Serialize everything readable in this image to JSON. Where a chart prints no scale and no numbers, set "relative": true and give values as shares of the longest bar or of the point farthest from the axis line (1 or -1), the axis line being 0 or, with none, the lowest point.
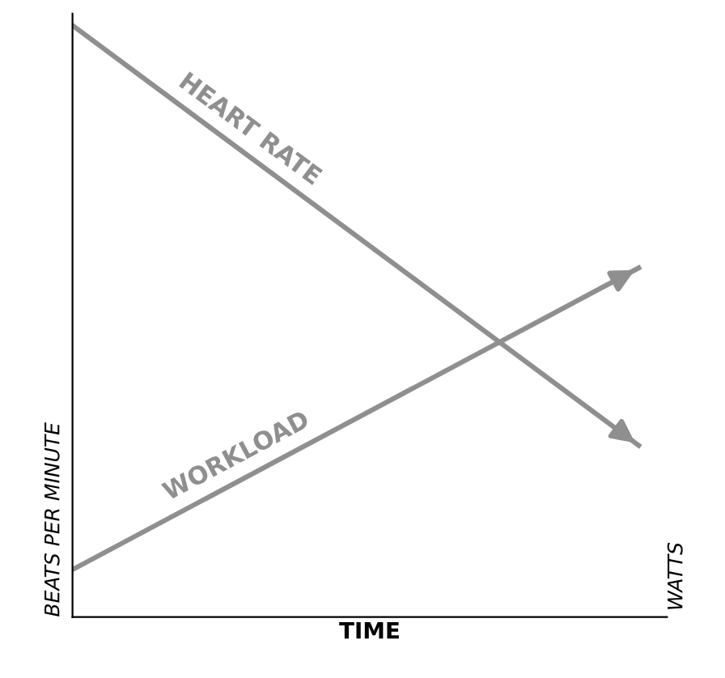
{
  "chart_data": {
    "type": "line",
    "relative": true,
    "xlabel": "TIME",
    "ylabel": "BEATS PER MINUTE",
    "annotations": [
      "WATTS"
    ],
    "categories": [
      null,
      null
    ],
    "series": [
      {
        "name": "HEART RATE",
        "color": "#8f8f8f",
        "values": [
          1,
          0.29
        ]
      },
      {
        "name": "WORKLOAD",
        "color": "#8f8f8f",
        "values": [
          0.08,
          0.59
        ]
      }
    ],
    "marker": "none",
    "line_style": "solid",
    "grid": false,
    "legend": false
  }
}
